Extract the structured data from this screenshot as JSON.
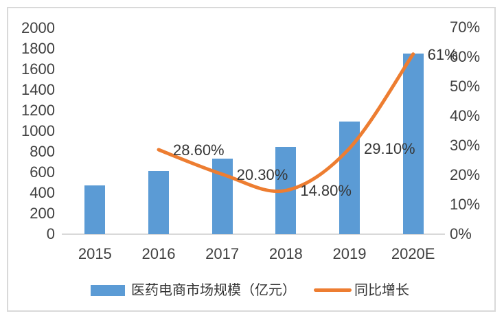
{
  "chart_data": {
    "type": "combo-bar-line",
    "categories": [
      "2015",
      "2016",
      "2017",
      "2018",
      "2019",
      "2020E"
    ],
    "series": [
      {
        "name": "医药电商市场规模（亿元）",
        "type": "bar",
        "axis": "left",
        "color": "#5B9BD5",
        "values": [
          476,
          612,
          736,
          845,
          1091,
          1756
        ]
      },
      {
        "name": "同比增长",
        "type": "line",
        "axis": "right",
        "color": "#ED7D31",
        "smooth": true,
        "values": [
          null,
          28.6,
          20.3,
          14.8,
          29.1,
          61
        ],
        "point_labels": [
          "",
          "28.60%",
          "20.30%",
          "14.80%",
          "29.10%",
          "61%"
        ]
      }
    ],
    "left_axis": {
      "min": 0,
      "max": 2000,
      "step": 200,
      "ticks": [
        "2000",
        "1800",
        "1600",
        "1400",
        "1200",
        "1000",
        "800",
        "600",
        "400",
        "200",
        "0"
      ]
    },
    "right_axis": {
      "min": 0,
      "max": 70,
      "step": 10,
      "ticks": [
        "70%",
        "60%",
        "50%",
        "40%",
        "30%",
        "20%",
        "10%",
        "0%"
      ]
    },
    "grid": false,
    "legend_position": "bottom",
    "legend": {
      "items": [
        {
          "label": "医药电商市场规模（亿元）",
          "swatch": "bar",
          "color": "#5B9BD5"
        },
        {
          "label": "同比增长",
          "swatch": "line",
          "color": "#ED7D31"
        }
      ]
    }
  },
  "colors": {
    "bar": "#5B9BD5",
    "line": "#ED7D31",
    "axis_text": "#404040",
    "frame_border": "#D9D9D9"
  }
}
